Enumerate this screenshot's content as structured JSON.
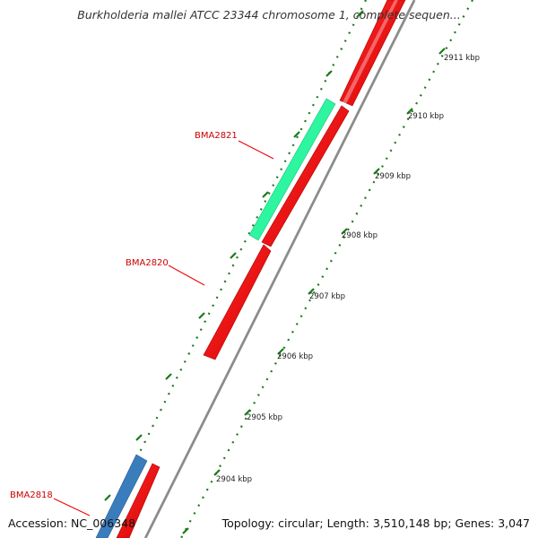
{
  "title": "Burkholderia mallei ATCC 23344 chromosome 1, complete sequen...",
  "footer": {
    "accession": "Accession: NC_006348",
    "topology": "Topology: circular; Length: 3,510,148 bp; Genes: 3,047"
  },
  "colors": {
    "backbone": "#8c8c8c",
    "gene_forward": "#ee0000",
    "gene_other": "#2ef5a0",
    "gene_blue": "#3a7dbd",
    "ticks": "#1a7a1a",
    "label_text": "#cc0000"
  },
  "scale": {
    "unit": "kbp",
    "ticks": [
      "2904 kbp",
      "2905 kbp",
      "2906 kbp",
      "2907 kbp",
      "2908 kbp",
      "2909 kbp",
      "2910 kbp",
      "2911 kbp"
    ]
  },
  "genes": [
    {
      "label": "BMA2821",
      "color_key": "gene_other"
    },
    {
      "label": "BMA2820",
      "color_key": "gene_forward"
    },
    {
      "label": "BMA2818",
      "color_key": "gene_blue"
    }
  ]
}
